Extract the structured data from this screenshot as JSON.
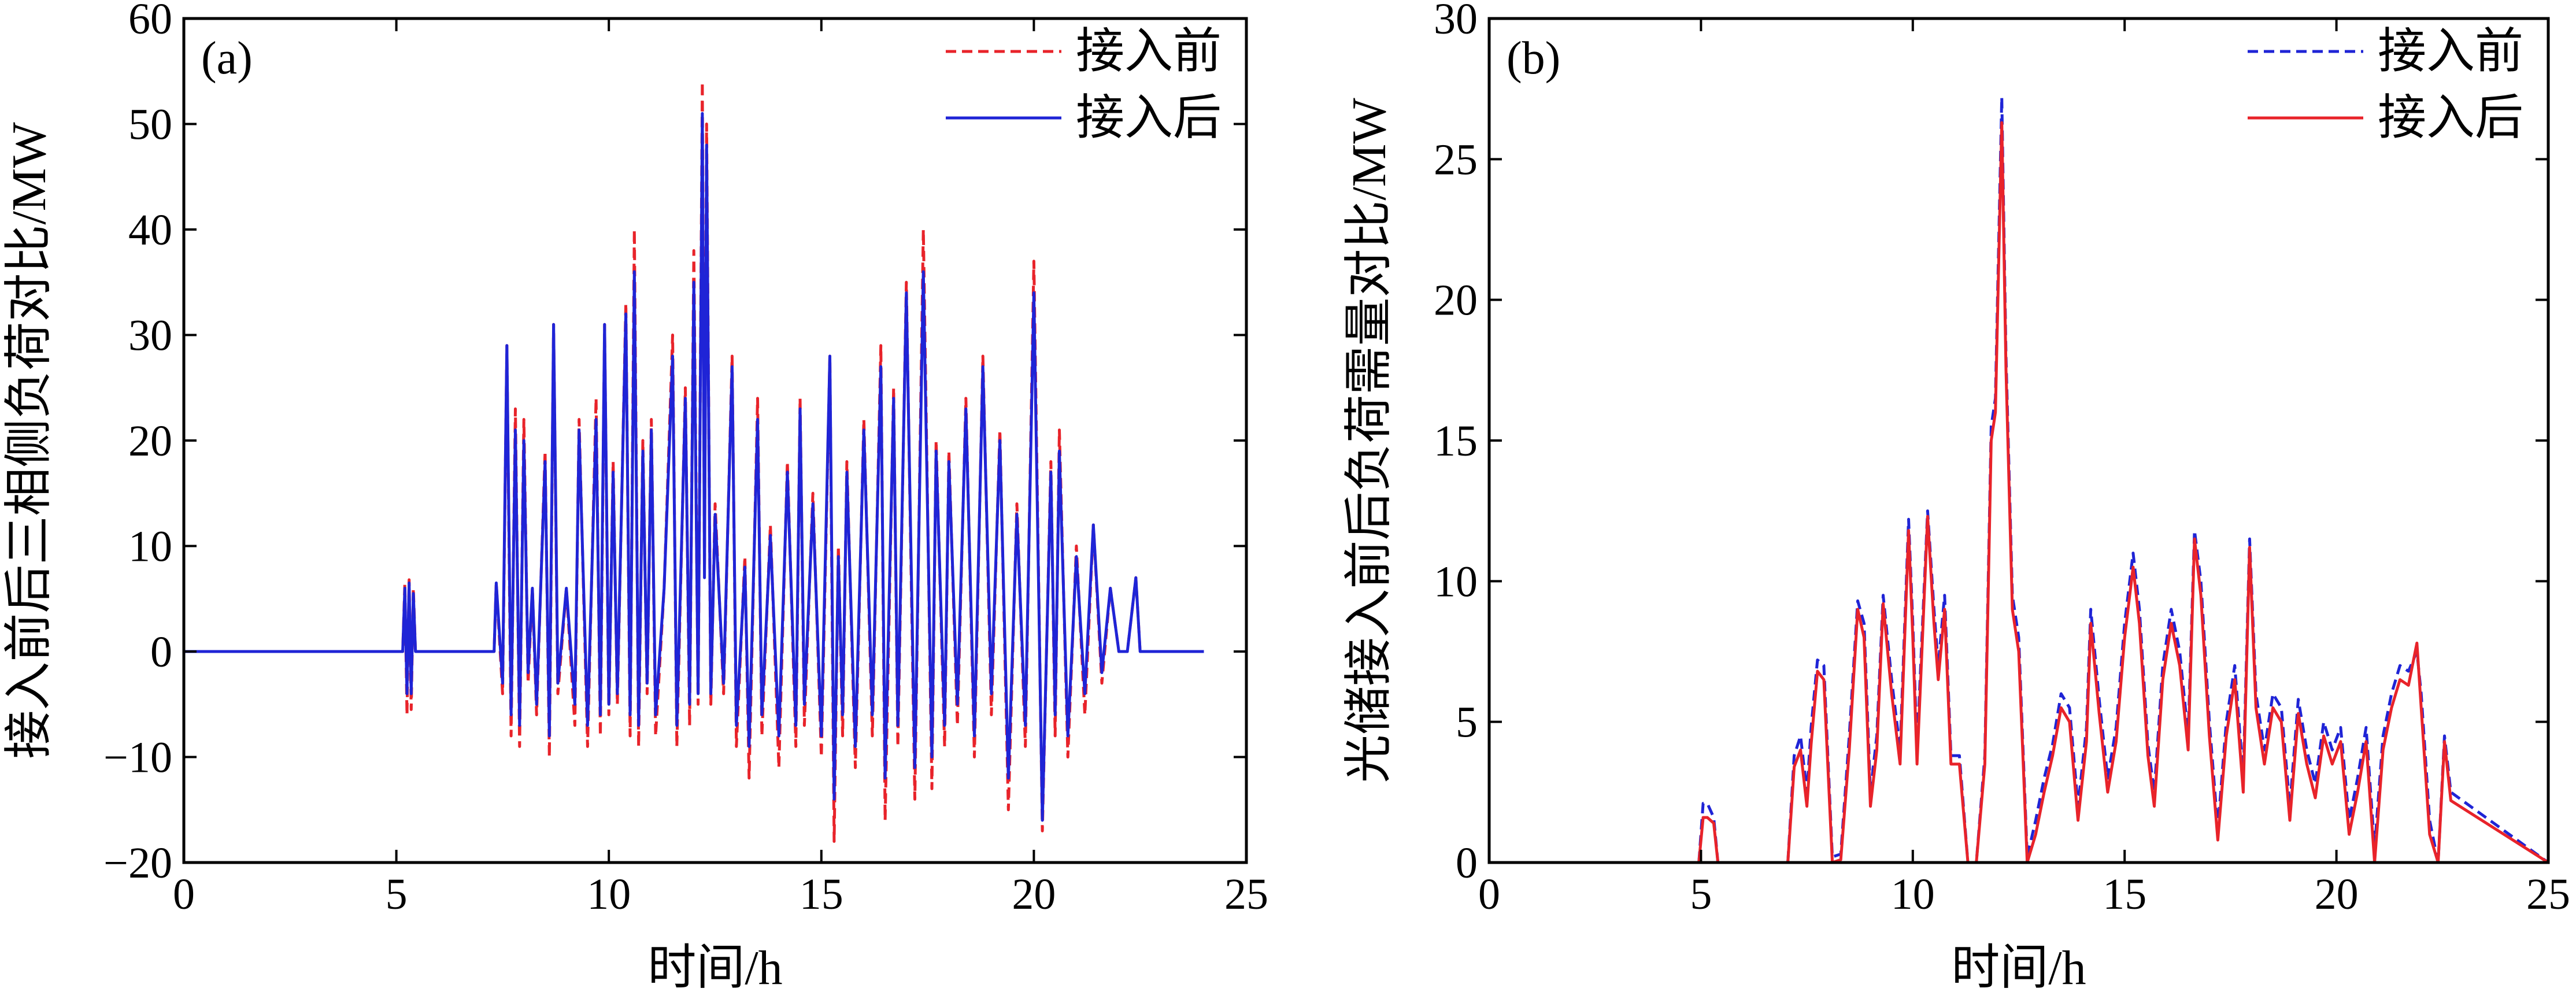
{
  "chart_data": [
    {
      "type": "line",
      "panel_label": "(a)",
      "xlabel": "时间/h",
      "ylabel": "接入前后三相侧负荷对比/MW",
      "xlim": [
        0,
        25
      ],
      "ylim": [
        -20,
        60
      ],
      "xticks": [
        0,
        5,
        10,
        15,
        20,
        25
      ],
      "yticks": [
        -20,
        -10,
        0,
        10,
        20,
        30,
        40,
        50,
        60
      ],
      "grid": false,
      "legend_position": "top-right",
      "series": [
        {
          "name": "接入前",
          "color": "#e8232a",
          "dash": "dashed",
          "x": [
            0,
            5.15,
            5.2,
            5.25,
            5.3,
            5.35,
            5.4,
            5.45,
            5.5,
            7.3,
            7.35,
            7.5,
            7.6,
            7.7,
            7.8,
            7.9,
            8.0,
            8.1,
            8.2,
            8.3,
            8.5,
            8.6,
            8.7,
            8.8,
            9.0,
            9.2,
            9.3,
            9.5,
            9.7,
            9.8,
            9.9,
            10.0,
            10.1,
            10.2,
            10.4,
            10.5,
            10.6,
            10.7,
            10.8,
            10.9,
            11.0,
            11.1,
            11.3,
            11.5,
            11.6,
            11.8,
            11.9,
            12.0,
            12.1,
            12.2,
            12.25,
            12.3,
            12.4,
            12.5,
            12.7,
            12.9,
            13.0,
            13.2,
            13.3,
            13.5,
            13.6,
            13.8,
            14.0,
            14.2,
            14.4,
            14.5,
            14.6,
            14.8,
            15.0,
            15.2,
            15.3,
            15.4,
            15.5,
            15.6,
            15.8,
            16.0,
            16.2,
            16.4,
            16.5,
            16.7,
            16.8,
            17.0,
            17.2,
            17.4,
            17.6,
            17.7,
            17.9,
            18.0,
            18.2,
            18.4,
            18.6,
            18.8,
            19.0,
            19.2,
            19.4,
            19.6,
            19.8,
            20.0,
            20.2,
            20.4,
            20.5,
            20.6,
            20.8,
            21.0,
            21.2,
            21.4,
            21.6,
            21.8,
            22.0,
            22.2,
            22.4,
            22.5,
            22.6,
            22.7,
            24.0
          ],
          "y": [
            0,
            0,
            6.5,
            -6,
            6.8,
            -5.5,
            6,
            0,
            0,
            0,
            6.5,
            -4,
            29,
            -8,
            23,
            -9,
            22,
            -3,
            6,
            -6,
            19,
            -10,
            31,
            -4,
            6,
            -7,
            22,
            -9,
            24,
            -8,
            31,
            -6,
            18,
            -5,
            33,
            -8,
            40,
            -9,
            20,
            -4,
            22,
            -8,
            6,
            30,
            -9,
            25,
            -7,
            38,
            -5,
            54,
            8,
            50,
            -5,
            14,
            -4,
            28,
            -9,
            9,
            -12,
            24,
            -8,
            12,
            -11,
            18,
            -9,
            24,
            -7,
            15,
            -10,
            28,
            -18,
            10,
            -8,
            18,
            -11,
            22,
            -8,
            29,
            -16,
            25,
            -9,
            35,
            -14,
            40,
            -13,
            20,
            -9,
            19,
            -7,
            24,
            -10,
            28,
            -6,
            21,
            -15,
            14,
            -9,
            37,
            -17,
            18,
            -8,
            21,
            -10,
            10,
            -6,
            12,
            -3,
            6,
            0,
            0,
            7,
            0,
            0,
            0,
            0
          ]
        },
        {
          "name": "接入后",
          "color": "#1f24d6",
          "dash": "solid",
          "x": [
            0,
            5.15,
            5.2,
            5.25,
            5.3,
            5.35,
            5.4,
            5.45,
            5.5,
            7.3,
            7.35,
            7.5,
            7.6,
            7.7,
            7.8,
            7.9,
            8.0,
            8.1,
            8.2,
            8.3,
            8.5,
            8.6,
            8.7,
            8.8,
            9.0,
            9.2,
            9.3,
            9.5,
            9.7,
            9.8,
            9.9,
            10.0,
            10.1,
            10.2,
            10.4,
            10.5,
            10.6,
            10.7,
            10.8,
            10.9,
            11.0,
            11.1,
            11.3,
            11.5,
            11.6,
            11.8,
            11.9,
            12.0,
            12.1,
            12.2,
            12.25,
            12.3,
            12.4,
            12.5,
            12.7,
            12.9,
            13.0,
            13.2,
            13.3,
            13.5,
            13.6,
            13.8,
            14.0,
            14.2,
            14.4,
            14.5,
            14.6,
            14.8,
            15.0,
            15.2,
            15.3,
            15.4,
            15.5,
            15.6,
            15.8,
            16.0,
            16.2,
            16.4,
            16.5,
            16.7,
            16.8,
            17.0,
            17.2,
            17.4,
            17.6,
            17.7,
            17.9,
            18.0,
            18.2,
            18.4,
            18.6,
            18.8,
            19.0,
            19.2,
            19.4,
            19.6,
            19.8,
            20.0,
            20.2,
            20.4,
            20.5,
            20.6,
            20.8,
            21.0,
            21.2,
            21.4,
            21.6,
            21.8,
            22.0,
            22.2,
            22.4,
            22.5,
            22.6,
            22.7,
            24.0
          ],
          "y": [
            0,
            0,
            6,
            -4,
            6.5,
            -4,
            5.5,
            0,
            0,
            0,
            6.5,
            -3,
            29,
            -6,
            21,
            -7,
            20,
            -2,
            6,
            -5,
            18,
            -8,
            31,
            -3,
            6,
            -5,
            21,
            -7,
            22,
            -6,
            31,
            -5,
            17,
            -4,
            32,
            -6,
            36,
            -7,
            19,
            -3,
            21,
            -6,
            6,
            28,
            -7,
            24,
            -5,
            35,
            -4,
            51,
            7,
            48,
            -4,
            13,
            -3,
            27,
            -7,
            8,
            -9,
            22,
            -6,
            11,
            -8,
            17,
            -7,
            23,
            -5,
            14,
            -8,
            28,
            -14,
            9,
            -6,
            17,
            -9,
            21,
            -6,
            27,
            -12,
            24,
            -7,
            34,
            -11,
            36,
            -10,
            19,
            -7,
            18,
            -5,
            23,
            -8,
            27,
            -4,
            20,
            -12,
            13,
            -7,
            34,
            -16,
            17,
            -6,
            19,
            -8,
            9,
            -4,
            12,
            -2,
            6,
            0,
            0,
            7,
            0,
            0,
            0,
            0
          ]
        }
      ]
    },
    {
      "type": "line",
      "panel_label": "(b)",
      "xlabel": "时间/h",
      "ylabel": "光储接入前后负荷需量对比/MW",
      "xlim": [
        0,
        25
      ],
      "ylim": [
        0,
        30
      ],
      "xticks": [
        0,
        5,
        10,
        15,
        20,
        25
      ],
      "yticks": [
        0,
        5,
        10,
        15,
        20,
        25,
        30
      ],
      "grid": false,
      "legend_position": "top-right",
      "series": [
        {
          "name": "接入前",
          "color": "#1f24d6",
          "dash": "dashed",
          "x": [
            0,
            4.95,
            5.05,
            5.15,
            5.3,
            5.4,
            5.5,
            7.05,
            7.2,
            7.35,
            7.5,
            7.6,
            7.75,
            7.9,
            8.1,
            8.3,
            8.5,
            8.7,
            8.85,
            9.0,
            9.15,
            9.3,
            9.5,
            9.7,
            9.9,
            10.0,
            10.1,
            10.2,
            10.35,
            10.5,
            10.6,
            10.75,
            10.9,
            11.1,
            11.3,
            11.5,
            11.7,
            11.85,
            11.95,
            12.1,
            12.2,
            12.35,
            12.5,
            12.7,
            12.9,
            13.1,
            13.3,
            13.5,
            13.7,
            13.9,
            14.1,
            14.2,
            14.4,
            14.6,
            14.8,
            15.0,
            15.2,
            15.35,
            15.55,
            15.7,
            15.9,
            16.1,
            16.3,
            16.5,
            16.65,
            16.8,
            17.0,
            17.2,
            17.4,
            17.6,
            17.8,
            17.95,
            18.1,
            18.3,
            18.5,
            18.7,
            18.9,
            19.1,
            19.3,
            19.5,
            19.7,
            19.9,
            20.1,
            20.3,
            20.5,
            20.7,
            20.9,
            21.1,
            21.3,
            21.5,
            21.7,
            21.9,
            22.0,
            22.2,
            22.4,
            22.55,
            22.7,
            25
          ],
          "y": [
            0,
            0,
            2.1,
            2.1,
            1.6,
            0,
            0,
            0,
            3.8,
            4.5,
            2.5,
            4.8,
            7.2,
            7.0,
            0.2,
            0.3,
            4.5,
            9.3,
            8.5,
            2.5,
            4.5,
            9.5,
            6.5,
            4.0,
            12.2,
            8.5,
            4.0,
            7.5,
            12.5,
            9.0,
            7.0,
            9.5,
            3.8,
            3.8,
            0,
            0,
            3.8,
            15.5,
            16.5,
            27.2,
            18.0,
            9.5,
            8.0,
            0.2,
            1.5,
            3.0,
            4.2,
            6.0,
            5.5,
            2.0,
            4.8,
            9.0,
            5.8,
            3.0,
            4.8,
            8.5,
            11.0,
            9.0,
            4.2,
            2.5,
            7.0,
            9.0,
            7.5,
            4.5,
            11.8,
            10.0,
            5.0,
            1.2,
            5.0,
            7.0,
            3.0,
            11.5,
            6.0,
            4.0,
            6.0,
            5.5,
            2.0,
            5.8,
            4.0,
            2.8,
            5.0,
            4.0,
            4.8,
            1.5,
            3.0,
            4.8,
            0.5,
            4.5,
            6.0,
            7.0,
            6.8,
            7.5,
            6.0,
            1.5,
            0,
            4.5,
            2.5,
            0
          ]
        },
        {
          "name": "接入后",
          "color": "#e8232a",
          "dash": "solid",
          "x": [
            0,
            4.95,
            5.05,
            5.15,
            5.3,
            5.4,
            5.5,
            7.05,
            7.2,
            7.35,
            7.5,
            7.6,
            7.75,
            7.9,
            8.1,
            8.3,
            8.5,
            8.7,
            8.85,
            9.0,
            9.15,
            9.3,
            9.5,
            9.7,
            9.9,
            10.0,
            10.1,
            10.2,
            10.35,
            10.5,
            10.6,
            10.75,
            10.9,
            11.1,
            11.3,
            11.5,
            11.7,
            11.85,
            11.95,
            12.1,
            12.2,
            12.35,
            12.5,
            12.7,
            12.9,
            13.1,
            13.3,
            13.5,
            13.7,
            13.9,
            14.1,
            14.2,
            14.4,
            14.6,
            14.8,
            15.0,
            15.2,
            15.35,
            15.55,
            15.7,
            15.9,
            16.1,
            16.3,
            16.5,
            16.65,
            16.8,
            17.0,
            17.2,
            17.4,
            17.6,
            17.8,
            17.95,
            18.1,
            18.3,
            18.5,
            18.7,
            18.9,
            19.1,
            19.3,
            19.5,
            19.7,
            19.9,
            20.1,
            20.3,
            20.5,
            20.7,
            20.9,
            21.1,
            21.3,
            21.5,
            21.7,
            21.9,
            22.0,
            22.2,
            22.4,
            22.55,
            22.7,
            25
          ],
          "y": [
            0,
            0,
            1.6,
            1.6,
            1.4,
            0,
            0,
            0,
            3.4,
            4.0,
            2.0,
            4.2,
            6.8,
            6.5,
            0,
            0.1,
            4.0,
            9.0,
            8.0,
            2.0,
            4.0,
            9.2,
            6.0,
            3.5,
            11.8,
            8.0,
            3.5,
            7.0,
            12.3,
            8.5,
            6.5,
            9.0,
            3.5,
            3.5,
            0,
            0,
            3.5,
            15.0,
            16.0,
            26.3,
            17.5,
            9.0,
            7.5,
            0,
            1.0,
            2.5,
            3.8,
            5.5,
            5.0,
            1.5,
            4.3,
            8.5,
            5.3,
            2.5,
            4.3,
            8.0,
            10.5,
            8.5,
            3.8,
            2.0,
            6.5,
            8.5,
            7.0,
            4.0,
            11.5,
            9.5,
            4.5,
            0.8,
            4.5,
            6.5,
            2.5,
            11.2,
            5.5,
            3.5,
            5.5,
            5.0,
            1.5,
            5.3,
            3.5,
            2.3,
            4.5,
            3.5,
            4.3,
            1.0,
            2.5,
            4.3,
            0,
            4.0,
            5.5,
            6.5,
            6.3,
            7.8,
            5.5,
            1.0,
            0,
            4.3,
            2.2,
            0
          ]
        }
      ]
    }
  ]
}
